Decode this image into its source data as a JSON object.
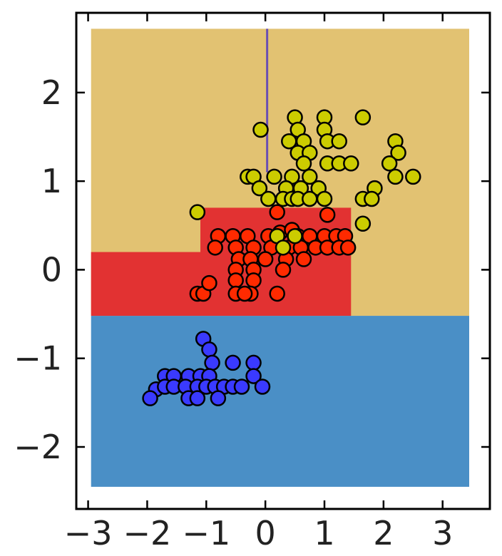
{
  "chart_data": {
    "type": "scatter",
    "title": "",
    "xlabel": "",
    "ylabel": "",
    "xlim": [
      -3.2,
      3.8
    ],
    "ylim": [
      -2.7,
      2.9
    ],
    "grid": false,
    "x_ticks": [
      "−3",
      "−2",
      "−1",
      "0",
      "1",
      "2",
      "3"
    ],
    "y_ticks": [
      "−2",
      "−1",
      "0",
      "1",
      "2"
    ],
    "x_tick_values": [
      -3,
      -2,
      -1,
      0,
      1,
      2,
      3
    ],
    "y_tick_values": [
      -2,
      -1,
      0,
      1,
      2
    ],
    "background_color": "#e2c272",
    "decision_regions": [
      {
        "class": "blue",
        "color": "#4a8fc6",
        "x0": -2.95,
        "x1": 3.45,
        "y0": -2.45,
        "y1": -0.52
      },
      {
        "class": "red",
        "color": "#e23232",
        "x0": -2.95,
        "x1": -1.1,
        "y0": -0.52,
        "y1": 0.2
      },
      {
        "class": "red",
        "color": "#e23232",
        "x0": -1.1,
        "x1": 1.45,
        "y0": -0.52,
        "y1": 0.7
      },
      {
        "class": "yellow",
        "color": "#e2c272",
        "x0": -2.95,
        "x1": 3.45,
        "y0": -0.52,
        "y1": 2.72
      }
    ],
    "boundary_line": {
      "x": 0.03,
      "y0": 1.1,
      "y1": 2.72,
      "color": "#6a4fb3"
    },
    "series": [
      {
        "color": "#3a3aff",
        "points": [
          [
            -1.05,
            -0.78
          ],
          [
            -0.95,
            -0.9
          ],
          [
            -0.9,
            -1.05
          ],
          [
            -0.55,
            -1.05
          ],
          [
            -0.2,
            -1.05
          ],
          [
            -1.7,
            -1.2
          ],
          [
            -1.55,
            -1.2
          ],
          [
            -1.3,
            -1.2
          ],
          [
            -1.1,
            -1.2
          ],
          [
            -0.95,
            -1.2
          ],
          [
            -0.2,
            -1.2
          ],
          [
            -1.85,
            -1.35
          ],
          [
            -1.7,
            -1.32
          ],
          [
            -1.55,
            -1.32
          ],
          [
            -1.35,
            -1.32
          ],
          [
            -1.15,
            -1.32
          ],
          [
            -1.0,
            -1.32
          ],
          [
            -0.85,
            -1.32
          ],
          [
            -0.7,
            -1.32
          ],
          [
            -0.55,
            -1.32
          ],
          [
            -0.4,
            -1.32
          ],
          [
            -0.05,
            -1.32
          ],
          [
            -1.95,
            -1.45
          ],
          [
            -1.3,
            -1.45
          ],
          [
            -1.15,
            -1.45
          ],
          [
            -0.8,
            -1.45
          ]
        ]
      },
      {
        "color": "#ff2a00",
        "points": [
          [
            0.2,
            0.65
          ],
          [
            1.05,
            0.62
          ],
          [
            -0.8,
            0.38
          ],
          [
            -0.55,
            0.38
          ],
          [
            -0.3,
            0.38
          ],
          [
            0.05,
            0.38
          ],
          [
            0.25,
            0.42
          ],
          [
            0.45,
            0.45
          ],
          [
            0.55,
            0.38
          ],
          [
            0.75,
            0.38
          ],
          [
            1.0,
            0.38
          ],
          [
            1.2,
            0.38
          ],
          [
            1.35,
            0.38
          ],
          [
            -0.85,
            0.25
          ],
          [
            -0.5,
            0.25
          ],
          [
            -0.2,
            0.25
          ],
          [
            0.1,
            0.25
          ],
          [
            0.4,
            0.25
          ],
          [
            0.6,
            0.25
          ],
          [
            0.85,
            0.25
          ],
          [
            1.05,
            0.25
          ],
          [
            1.25,
            0.25
          ],
          [
            1.4,
            0.25
          ],
          [
            -0.45,
            0.12
          ],
          [
            -0.25,
            0.12
          ],
          [
            0.0,
            0.12
          ],
          [
            0.35,
            0.12
          ],
          [
            0.65,
            0.12
          ],
          [
            -0.5,
            0.0
          ],
          [
            -0.2,
            0.0
          ],
          [
            0.3,
            0.0
          ],
          [
            -0.5,
            -0.12
          ],
          [
            -0.2,
            -0.12
          ],
          [
            -1.15,
            -0.27
          ],
          [
            -0.5,
            -0.27
          ],
          [
            -0.25,
            -0.27
          ],
          [
            0.2,
            -0.27
          ],
          [
            -1.05,
            -0.27
          ],
          [
            -0.95,
            -0.15
          ],
          [
            -0.35,
            -0.27
          ]
        ]
      },
      {
        "color": "#cccc00",
        "points": [
          [
            0.5,
            1.72
          ],
          [
            1.0,
            1.72
          ],
          [
            1.65,
            1.72
          ],
          [
            -0.08,
            1.58
          ],
          [
            0.55,
            1.58
          ],
          [
            1.0,
            1.58
          ],
          [
            0.4,
            1.45
          ],
          [
            0.65,
            1.45
          ],
          [
            1.05,
            1.45
          ],
          [
            1.25,
            1.45
          ],
          [
            2.2,
            1.45
          ],
          [
            0.55,
            1.32
          ],
          [
            0.75,
            1.32
          ],
          [
            2.25,
            1.32
          ],
          [
            0.65,
            1.2
          ],
          [
            1.05,
            1.2
          ],
          [
            1.25,
            1.2
          ],
          [
            1.45,
            1.2
          ],
          [
            2.1,
            1.2
          ],
          [
            -0.3,
            1.05
          ],
          [
            -0.2,
            1.05
          ],
          [
            0.15,
            1.05
          ],
          [
            0.45,
            1.05
          ],
          [
            0.75,
            1.05
          ],
          [
            2.2,
            1.05
          ],
          [
            2.5,
            1.05
          ],
          [
            -0.1,
            0.92
          ],
          [
            0.35,
            0.92
          ],
          [
            0.6,
            0.92
          ],
          [
            0.9,
            0.92
          ],
          [
            1.85,
            0.92
          ],
          [
            0.05,
            0.8
          ],
          [
            0.3,
            0.8
          ],
          [
            0.45,
            0.8
          ],
          [
            0.55,
            0.8
          ],
          [
            0.75,
            0.8
          ],
          [
            1.0,
            0.8
          ],
          [
            1.65,
            0.8
          ],
          [
            1.8,
            0.8
          ],
          [
            -1.15,
            0.65
          ],
          [
            1.65,
            0.52
          ],
          [
            0.2,
            0.38
          ],
          [
            0.5,
            0.38
          ],
          [
            0.3,
            0.25
          ]
        ]
      }
    ]
  }
}
